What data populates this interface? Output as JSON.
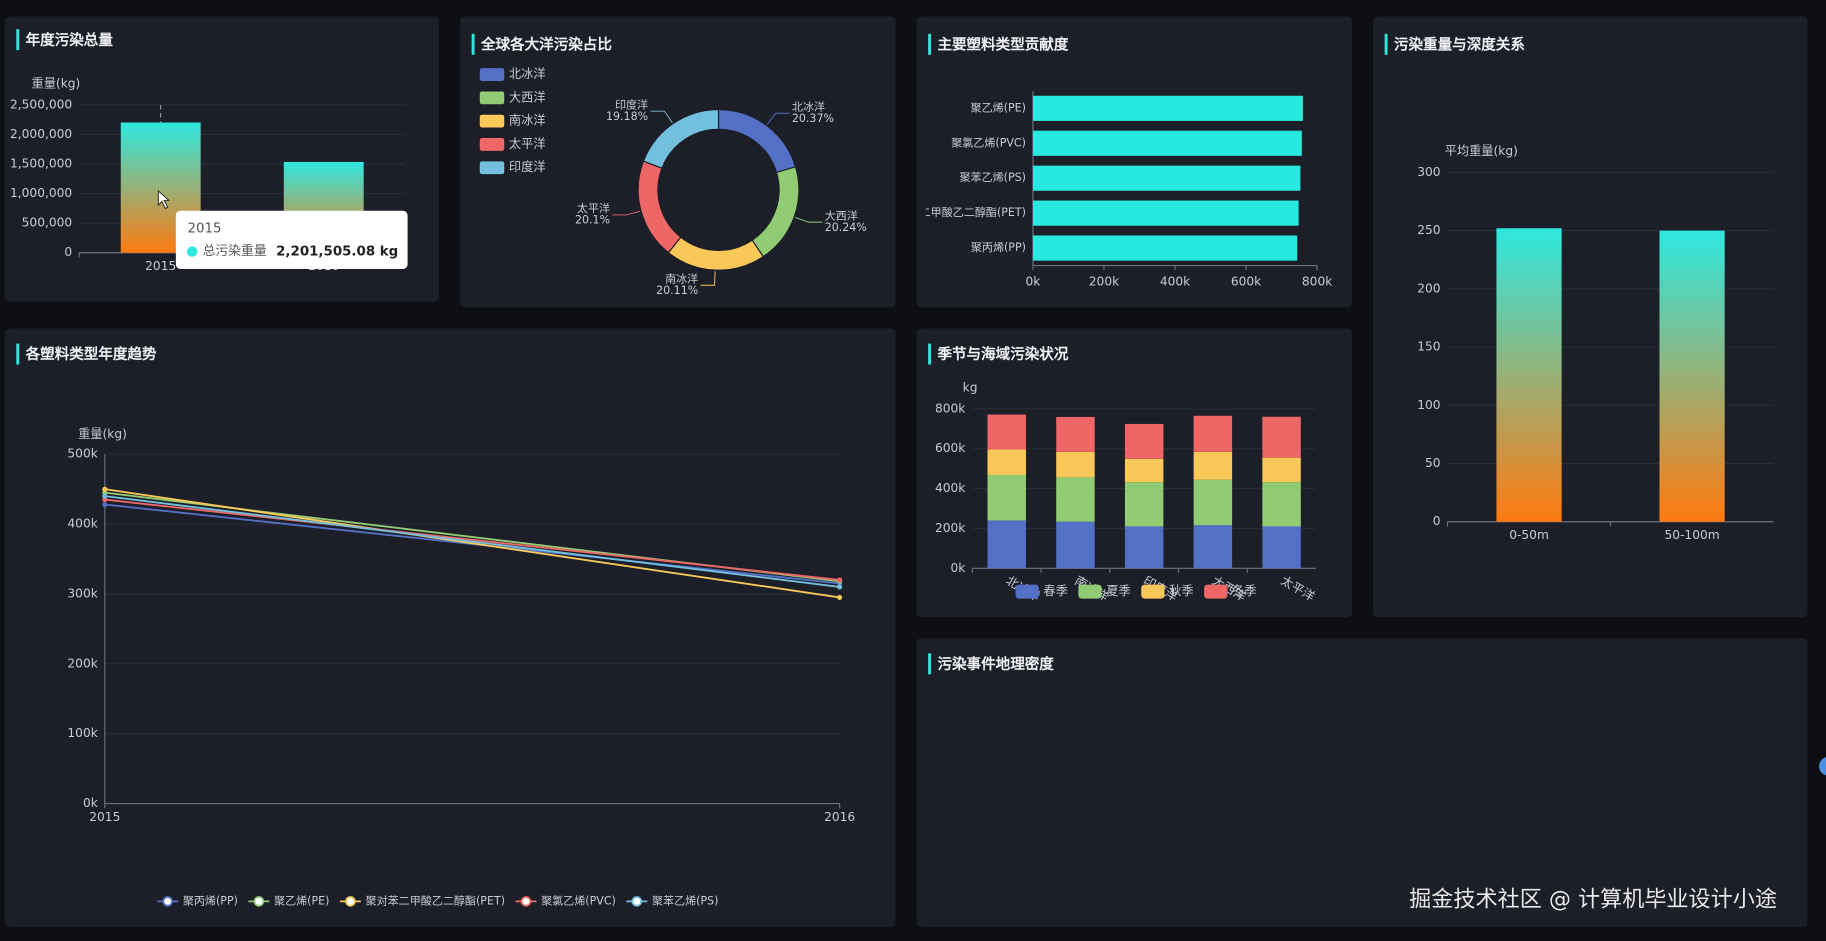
{
  "chart_data": [
    {
      "type": "bar",
      "title": "年度污染总量",
      "y_name": "重量(kg)",
      "categories": [
        "2015",
        "2016"
      ],
      "values": [
        2201505.08,
        1535000
      ],
      "gradient": [
        "#2ee8e0",
        "#ff7a10"
      ],
      "ylim": [
        0,
        2500000
      ],
      "yticks": [
        0,
        {
          "value": 500000,
          "label": "500,000"
        },
        {
          "value": 1000000,
          "label": "1,000,000"
        },
        {
          "value": 1500000,
          "label": "1,500,000"
        },
        {
          "value": 2000000,
          "label": "2,000,000"
        },
        {
          "value": 2500000,
          "label": "2,500,000"
        }
      ],
      "grid": true,
      "tooltip": {
        "title": "2015",
        "label": "总污染重量",
        "value_label": "2,201,505.08 kg",
        "color": "#2ee8e0"
      }
    },
    {
      "type": "pie",
      "title": "全球各大洋污染占比",
      "categories": [
        "北冰洋",
        "大西洋",
        "南冰洋",
        "太平洋",
        "印度洋"
      ],
      "values": [
        20.37,
        20.24,
        20.11,
        20.1,
        19.18
      ],
      "value_labels": [
        "20.37%",
        "20.24%",
        "20.11%",
        "20.1%",
        "19.18%"
      ],
      "colors": [
        "#5470c6",
        "#91cc75",
        "#fac858",
        "#ee6666",
        "#73c0de"
      ]
    },
    {
      "type": "bar",
      "horizontal": true,
      "title": "主要塑料类型贡献度",
      "categories": [
        "聚乙烯(PE)",
        "聚氯乙烯(PVC)",
        "聚苯乙烯(PS)",
        "聚对苯二甲酸乙二醇酯(PET)",
        "聚丙烯(PP)"
      ],
      "values": [
        760000,
        757000,
        753000,
        748000,
        744000
      ],
      "color": "#28e9df",
      "xlim": [
        0,
        800000
      ],
      "xticks": [
        {
          "value": 0,
          "label": "0k"
        },
        {
          "value": 200000,
          "label": "200k"
        },
        {
          "value": 400000,
          "label": "400k"
        },
        {
          "value": 600000,
          "label": "600k"
        },
        {
          "value": 800000,
          "label": "800k"
        }
      ]
    },
    {
      "type": "bar",
      "title": "污染重量与深度关系",
      "y_name": "平均重量(kg)",
      "categories": [
        "0-50m",
        "50-100m"
      ],
      "values": [
        252,
        250
      ],
      "gradient": [
        "#2ee8e0",
        "#ff7a10"
      ],
      "ylim": [
        0,
        300
      ],
      "yticks": [
        0,
        50,
        100,
        150,
        200,
        250,
        300
      ],
      "grid": true
    },
    {
      "type": "line",
      "title": "各塑料类型年度趋势",
      "y_name": "重量(kg)",
      "categories": [
        "2015",
        "2016"
      ],
      "series": [
        {
          "name": "聚丙烯(PP)",
          "color": "#5470c6",
          "values": [
            428000,
            315000
          ]
        },
        {
          "name": "聚乙烯(PE)",
          "color": "#91cc75",
          "values": [
            445000,
            318000
          ]
        },
        {
          "name": "聚对苯二甲酸乙二醇酯(PET)",
          "color": "#fac858",
          "values": [
            450000,
            295000
          ]
        },
        {
          "name": "聚氯乙烯(PVC)",
          "color": "#ee6666",
          "values": [
            435000,
            320000
          ]
        },
        {
          "name": "聚苯乙烯(PS)",
          "color": "#73c0de",
          "values": [
            440000,
            310000
          ]
        }
      ],
      "ylim": [
        0,
        500000
      ],
      "yticks": [
        {
          "value": 0,
          "label": "0k"
        },
        {
          "value": 100000,
          "label": "100k"
        },
        {
          "value": 200000,
          "label": "200k"
        },
        {
          "value": 300000,
          "label": "300k"
        },
        {
          "value": 400000,
          "label": "400k"
        },
        {
          "value": 500000,
          "label": "500k"
        }
      ],
      "grid": true
    },
    {
      "type": "bar",
      "stacked": true,
      "title": "季节与海域污染状况",
      "y_name": "kg",
      "categories": [
        "北冰洋",
        "南冰洋",
        "印度洋",
        "大西洋",
        "太平洋"
      ],
      "series": [
        {
          "name": "春季",
          "color": "#5470c6",
          "values": [
            240000,
            234000,
            210000,
            216000,
            210000
          ]
        },
        {
          "name": "夏季",
          "color": "#91cc75",
          "values": [
            228000,
            222000,
            222000,
            228000,
            222000
          ]
        },
        {
          "name": "秋季",
          "color": "#fac858",
          "values": [
            128000,
            128000,
            117000,
            140000,
            123000
          ]
        },
        {
          "name": "冬季",
          "color": "#ee6666",
          "values": [
            175000,
            175000,
            175000,
            181000,
            205000
          ]
        }
      ],
      "ylim": [
        0,
        800000
      ],
      "yticks": [
        {
          "value": 0,
          "label": "0k"
        },
        {
          "value": 200000,
          "label": "200k"
        },
        {
          "value": 400000,
          "label": "400k"
        },
        {
          "value": 600000,
          "label": "600k"
        },
        {
          "value": 800000,
          "label": "800k"
        }
      ],
      "grid": true
    }
  ],
  "empty_panel": {
    "title": "污染事件地理密度"
  },
  "watermark": "掘金技术社区 @ 计算机毕业设计小途"
}
